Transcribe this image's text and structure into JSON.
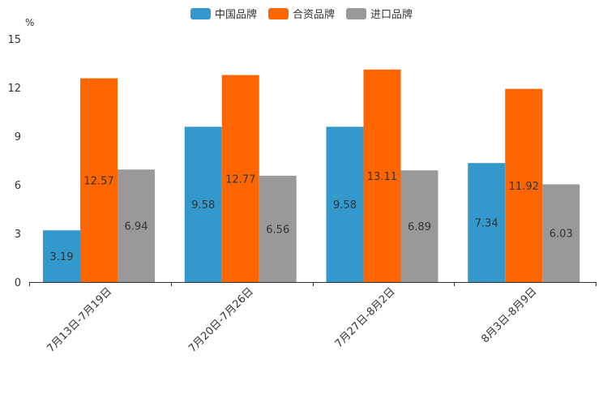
{
  "chart_data": {
    "type": "bar",
    "unit": "%",
    "categories": [
      "7月13日-7月19日",
      "7月20日-7月26日",
      "7月27日-8月2日",
      "8月3日-8月9日"
    ],
    "series": [
      {
        "name": "中国品牌",
        "color": "#3398CC",
        "values": [
          3.19,
          9.58,
          9.58,
          7.34
        ],
        "labels": [
          "3.19",
          "9.58",
          "9.58",
          "7.34"
        ]
      },
      {
        "name": "合资品牌",
        "color": "#FF6600",
        "values": [
          12.57,
          12.77,
          13.11,
          11.92
        ],
        "labels": [
          "12.57",
          "12.77",
          "13.11",
          "11.92"
        ]
      },
      {
        "name": "进口品牌",
        "color": "#999999",
        "values": [
          6.94,
          6.56,
          6.89,
          6.03
        ],
        "labels": [
          "6.94",
          "6.56",
          "6.89",
          "6.03"
        ]
      }
    ],
    "ylim": [
      0,
      15
    ],
    "yticks": [
      "0",
      "3",
      "6",
      "9",
      "12",
      "15"
    ],
    "legend_position": "top-center",
    "grid": false
  }
}
